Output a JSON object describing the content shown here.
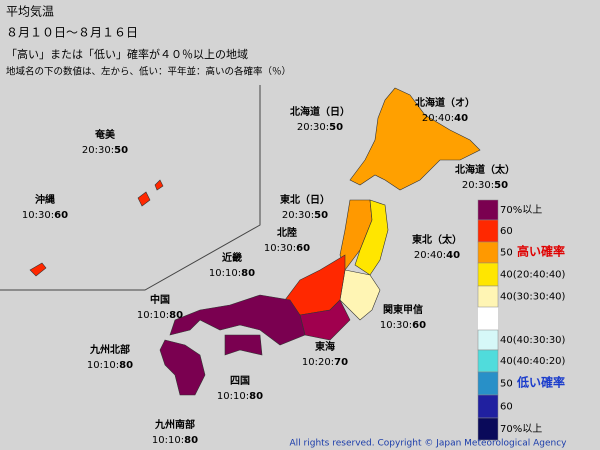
{
  "header": {
    "title": "平均気温",
    "period": "８月１０日～８月１６日",
    "subtitle": "「高い」または「低い」確率が４０％以上の地域",
    "note": "地域名の下の数値は、左から、低い：平年並：高いの各確率（％）"
  },
  "separator": ":",
  "regions": [
    {
      "name": "奄美",
      "probs": [
        20,
        30,
        50
      ]
    },
    {
      "name": "沖縄",
      "probs": [
        10,
        30,
        60
      ]
    },
    {
      "name": "北海道（日）",
      "probs": [
        20,
        30,
        50
      ]
    },
    {
      "name": "北海道（オ）",
      "probs": [
        20,
        40,
        40
      ]
    },
    {
      "name": "北海道（太）",
      "probs": [
        20,
        30,
        50
      ]
    },
    {
      "name": "東北（日）",
      "probs": [
        20,
        30,
        50
      ]
    },
    {
      "name": "北陸",
      "probs": [
        10,
        30,
        60
      ]
    },
    {
      "name": "東北（太）",
      "probs": [
        20,
        40,
        40
      ]
    },
    {
      "name": "近畿",
      "probs": [
        10,
        10,
        80
      ]
    },
    {
      "name": "中国",
      "probs": [
        10,
        10,
        80
      ]
    },
    {
      "name": "関東甲信",
      "probs": [
        10,
        30,
        60
      ]
    },
    {
      "name": "東海",
      "probs": [
        10,
        20,
        70
      ]
    },
    {
      "name": "九州北部",
      "probs": [
        10,
        10,
        80
      ]
    },
    {
      "name": "四国",
      "probs": [
        10,
        10,
        80
      ]
    },
    {
      "name": "九州南部",
      "probs": [
        10,
        10,
        80
      ]
    }
  ],
  "legend": {
    "high_label": "高い確率",
    "low_label": "低い確率",
    "items": [
      {
        "label": "70%以上",
        "color": "#7a0050"
      },
      {
        "label": "60",
        "color": "#ff2800"
      },
      {
        "label": "50",
        "color": "#ff9900"
      },
      {
        "label": "40(20:40:40)",
        "color": "#ffe600"
      },
      {
        "label": "40(30:30:40)",
        "color": "#fff5b4"
      },
      {
        "label": "40(40:30:30)",
        "color": "#d6f8f8"
      },
      {
        "label": "40(40:40:20)",
        "color": "#50dcdc"
      },
      {
        "label": "50",
        "color": "#2890c8"
      },
      {
        "label": "60",
        "color": "#2020a0"
      },
      {
        "label": "70%以上",
        "color": "#0a0a5a"
      }
    ]
  },
  "copyright": "All rights reserved. Copyright © Japan Meteorological Agency"
}
